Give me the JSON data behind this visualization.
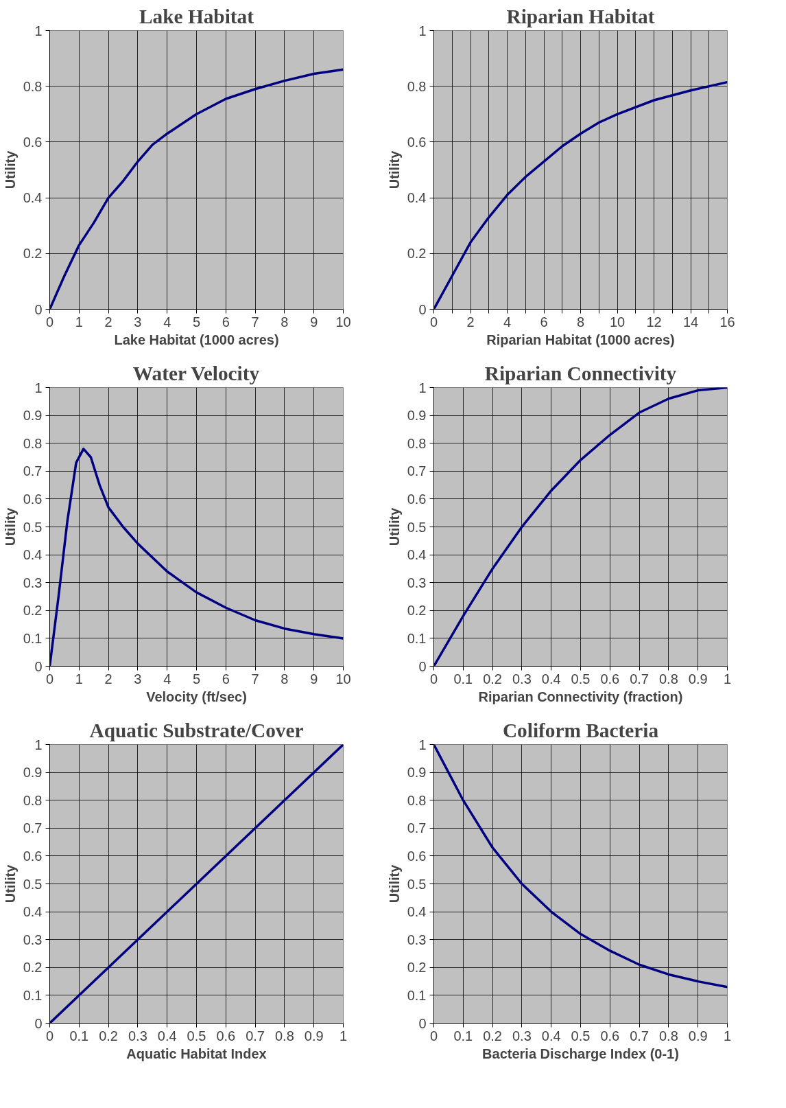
{
  "chart_data": [
    {
      "type": "line",
      "title": "Lake Habitat",
      "xlabel": "Lake Habitat (1000 acres)",
      "ylabel": "Utility",
      "x": [
        0,
        0.5,
        1,
        1.5,
        2,
        2.5,
        3,
        3.5,
        4,
        5,
        6,
        7,
        8,
        9,
        10
      ],
      "series": [
        {
          "color": "#000080",
          "values": [
            0,
            0.12,
            0.23,
            0.31,
            0.4,
            0.46,
            0.53,
            0.59,
            0.63,
            0.7,
            0.755,
            0.79,
            0.82,
            0.845,
            0.86
          ]
        }
      ],
      "xlim": [
        0,
        10
      ],
      "xticks": [
        0,
        1,
        2,
        3,
        4,
        5,
        6,
        7,
        8,
        9,
        10
      ],
      "ylim": [
        0,
        1
      ],
      "yticks": [
        0,
        0.2,
        0.4,
        0.6,
        0.8,
        1
      ],
      "grid": true
    },
    {
      "type": "line",
      "title": "Riparian Habitat",
      "xlabel": "Riparian Habitat (1000 acres)",
      "ylabel": "Utility",
      "x": [
        0,
        1,
        2,
        3,
        4,
        5,
        6,
        7,
        8,
        9,
        10,
        12,
        14,
        16
      ],
      "series": [
        {
          "color": "#000080",
          "values": [
            0,
            0.12,
            0.24,
            0.33,
            0.41,
            0.475,
            0.53,
            0.585,
            0.63,
            0.67,
            0.7,
            0.75,
            0.785,
            0.815
          ]
        }
      ],
      "xlim": [
        0,
        16
      ],
      "xticks": [
        0,
        {
          "value": 1,
          "label": null
        },
        2,
        {
          "value": 3,
          "label": null
        },
        4,
        {
          "value": 5,
          "label": null
        },
        6,
        {
          "value": 7,
          "label": null
        },
        8,
        {
          "value": 9,
          "label": null
        },
        10,
        {
          "value": 11,
          "label": null
        },
        12,
        {
          "value": 13,
          "label": null
        },
        14,
        {
          "value": 15,
          "label": null
        },
        16
      ],
      "ylim": [
        0,
        1
      ],
      "yticks": [
        0,
        0.2,
        0.4,
        0.6,
        0.8,
        1
      ],
      "grid": true
    },
    {
      "type": "line",
      "title": "Water Velocity",
      "xlabel": "Velocity (ft/sec)",
      "ylabel": "Utility",
      "x": [
        0,
        0.3,
        0.6,
        0.9,
        1.15,
        1.4,
        1.7,
        2,
        2.5,
        3,
        4,
        5,
        6,
        7,
        8,
        9,
        10
      ],
      "series": [
        {
          "color": "#000080",
          "values": [
            0,
            0.25,
            0.52,
            0.73,
            0.78,
            0.75,
            0.65,
            0.57,
            0.5,
            0.44,
            0.34,
            0.265,
            0.21,
            0.165,
            0.135,
            0.115,
            0.1
          ]
        }
      ],
      "xlim": [
        0,
        10
      ],
      "xticks": [
        0,
        1,
        2,
        3,
        4,
        5,
        6,
        7,
        8,
        9,
        10
      ],
      "ylim": [
        0,
        1
      ],
      "yticks": [
        0,
        0.1,
        0.2,
        0.3,
        0.4,
        0.5,
        0.6,
        0.7,
        0.8,
        0.9,
        1
      ],
      "grid": true
    },
    {
      "type": "line",
      "title": "Riparian Connectivity",
      "xlabel": "Riparian Connectivity (fraction)",
      "ylabel": "Utility",
      "x": [
        0,
        0.1,
        0.2,
        0.3,
        0.4,
        0.5,
        0.6,
        0.7,
        0.8,
        0.9,
        1
      ],
      "series": [
        {
          "color": "#000080",
          "values": [
            0,
            0.18,
            0.35,
            0.5,
            0.63,
            0.74,
            0.83,
            0.91,
            0.96,
            0.99,
            1
          ]
        }
      ],
      "xlim": [
        0,
        1
      ],
      "xticks": [
        0,
        0.1,
        0.2,
        0.3,
        0.4,
        0.5,
        0.6,
        0.7,
        0.8,
        0.9,
        1
      ],
      "ylim": [
        0,
        1
      ],
      "yticks": [
        0,
        0.1,
        0.2,
        0.3,
        0.4,
        0.5,
        0.6,
        0.7,
        0.8,
        0.9,
        1
      ],
      "grid": true
    },
    {
      "type": "line",
      "title": "Aquatic Substrate/Cover",
      "xlabel": "Aquatic Habitat Index",
      "ylabel": "Utility",
      "x": [
        0,
        1
      ],
      "series": [
        {
          "color": "#000080",
          "values": [
            0,
            1
          ]
        }
      ],
      "xlim": [
        0,
        1
      ],
      "xticks": [
        0,
        0.1,
        0.2,
        0.3,
        0.4,
        0.5,
        0.6,
        0.7,
        0.8,
        0.9,
        1
      ],
      "ylim": [
        0,
        1
      ],
      "yticks": [
        0,
        0.1,
        0.2,
        0.3,
        0.4,
        0.5,
        0.6,
        0.7,
        0.8,
        0.9,
        1
      ],
      "grid": true
    },
    {
      "type": "line",
      "title": "Coliform Bacteria",
      "xlabel": "Bacteria Discharge Index (0-1)",
      "ylabel": "Utility",
      "x": [
        0,
        0.05,
        0.1,
        0.2,
        0.3,
        0.4,
        0.5,
        0.6,
        0.7,
        0.8,
        0.9,
        1
      ],
      "series": [
        {
          "color": "#000080",
          "values": [
            1,
            0.9,
            0.8,
            0.63,
            0.5,
            0.4,
            0.32,
            0.26,
            0.21,
            0.175,
            0.15,
            0.13
          ]
        }
      ],
      "xlim": [
        0,
        1
      ],
      "xticks": [
        0,
        0.1,
        0.2,
        0.3,
        0.4,
        0.5,
        0.6,
        0.7,
        0.8,
        0.9,
        1
      ],
      "ylim": [
        0,
        1
      ],
      "yticks": [
        0,
        0.1,
        0.2,
        0.3,
        0.4,
        0.5,
        0.6,
        0.7,
        0.8,
        0.9,
        1
      ],
      "grid": true
    }
  ]
}
